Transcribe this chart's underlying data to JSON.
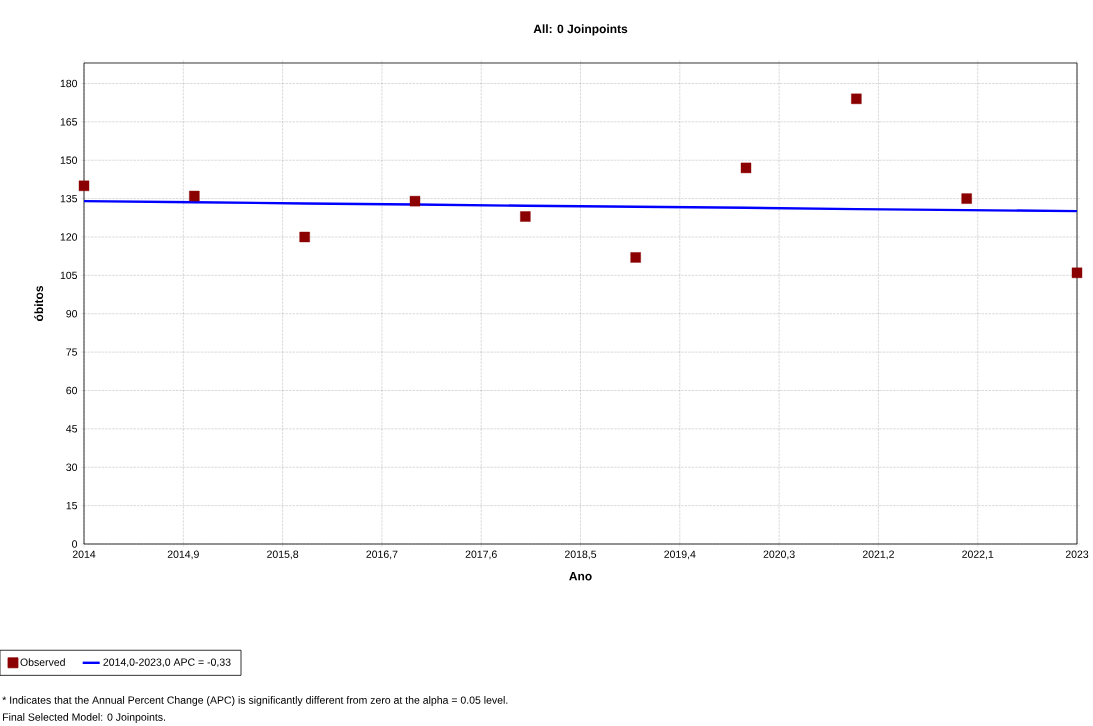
{
  "chart_data": {
    "type": "scatter",
    "title": "All: 0 Joinpoints",
    "xlabel": "Ano",
    "ylabel": "óbitos",
    "x": [
      2014,
      2015,
      2016,
      2017,
      2018,
      2019,
      2020,
      2021,
      2022,
      2023
    ],
    "series": [
      {
        "name": "Observed",
        "color": "#8b0000",
        "marker": "square",
        "values": [
          140,
          136,
          120,
          134,
          128,
          112,
          147,
          174,
          135,
          106
        ]
      },
      {
        "name": "2014,0-2023,0 APC  =  -0,33",
        "type": "line",
        "color": "#0000ff",
        "marker": "none",
        "values": [
          134,
          133.6,
          133.1,
          132.7,
          132.2,
          131.8,
          131.4,
          130.9,
          130.5,
          130.1
        ]
      }
    ],
    "xlim": [
      2014,
      2023
    ],
    "xticks": [
      2014,
      {
        "value": 2014.9,
        "label": "2014,9"
      },
      {
        "value": 2015.8,
        "label": "2015,8"
      },
      {
        "value": 2016.7,
        "label": "2016,7"
      },
      {
        "value": 2017.6,
        "label": "2017,6"
      },
      {
        "value": 2018.5,
        "label": "2018,5"
      },
      {
        "value": 2019.4,
        "label": "2019,4"
      },
      {
        "value": 2020.3,
        "label": "2020,3"
      },
      {
        "value": 2021.2,
        "label": "2021,2"
      },
      {
        "value": 2022.1,
        "label": "2022,1"
      },
      2023
    ],
    "ylim": [
      0,
      188
    ],
    "yticks": [
      0,
      15,
      30,
      45,
      60,
      75,
      90,
      105,
      120,
      135,
      150,
      165,
      180
    ],
    "grid": true,
    "legend": "bottom",
    "annotations": [
      "* Indicates that the Annual Percent Change (APC) is significantly different from zero at the alpha = 0.05 level.",
      "Final Selected Model: 0 Joinpoints."
    ]
  }
}
